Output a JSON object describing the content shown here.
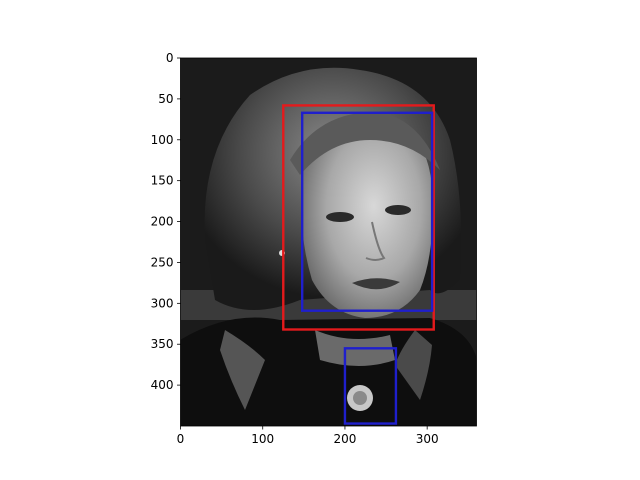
{
  "image": {
    "description_icon": "grayscale-portrait-photo",
    "extent": {
      "width": 360,
      "height": 450
    }
  },
  "axes": {
    "x_ticks": [
      0,
      100,
      200,
      300
    ],
    "y_ticks": [
      0,
      50,
      100,
      150,
      200,
      250,
      300,
      350,
      400
    ],
    "xlim": [
      0,
      360
    ],
    "ylim": [
      450,
      0
    ]
  },
  "boxes": [
    {
      "id": "red-box",
      "color": "#e41a1c",
      "x0": 125,
      "y0": 58,
      "x1": 308,
      "y1": 332
    },
    {
      "id": "blue-box-face",
      "color": "#1f1fcc",
      "x0": 148,
      "y0": 67,
      "x1": 306,
      "y1": 309
    },
    {
      "id": "blue-box-pin",
      "color": "#1f1fcc",
      "x0": 200,
      "y0": 355,
      "x1": 262,
      "y1": 447
    }
  ]
}
